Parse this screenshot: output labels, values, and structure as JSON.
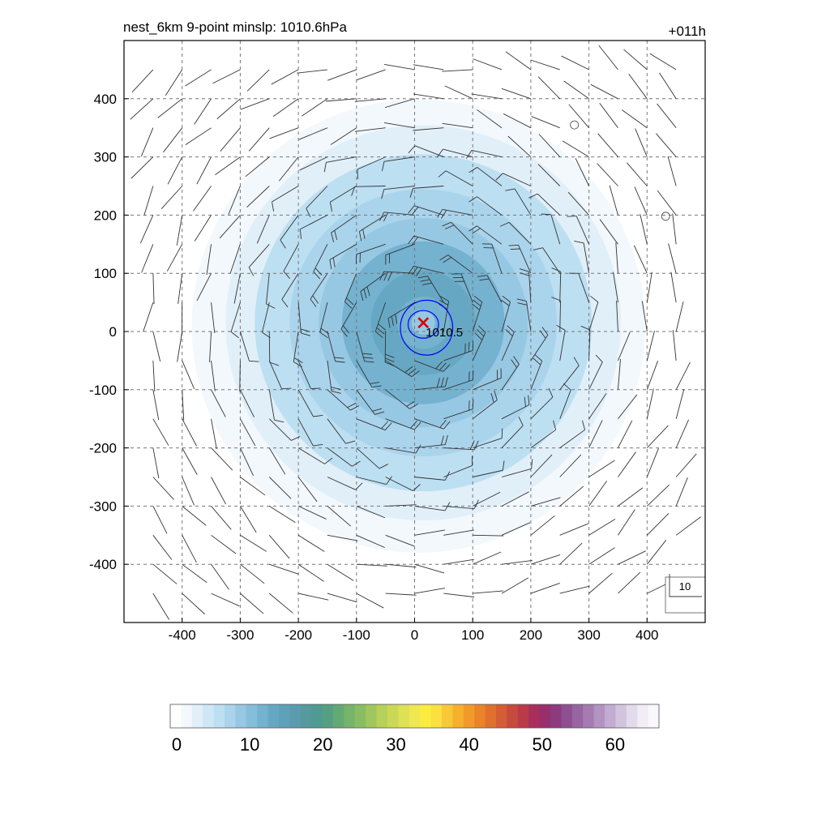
{
  "chart_data": {
    "type": "heatmap",
    "title": "nest_6km  9-point minslp: 1010.6hPa",
    "time_label": "+011h",
    "xlim": [
      -500,
      500
    ],
    "ylim": [
      -500,
      500
    ],
    "x_ticks": [
      -400,
      -300,
      -200,
      -100,
      0,
      100,
      200,
      300,
      400
    ],
    "y_ticks": [
      -400,
      -300,
      -200,
      -100,
      0,
      100,
      200,
      300,
      400
    ],
    "x_tick_labels": [
      "-400",
      "-300",
      "-200",
      "-100",
      "0",
      "100",
      "200",
      "300",
      "400"
    ],
    "y_tick_labels": [
      "-400",
      "-300",
      "-200",
      "-100",
      "0",
      "100",
      "200",
      "300",
      "400"
    ],
    "grid": true,
    "center": {
      "x": 15,
      "y": 15,
      "marker": "x",
      "marker_color": "#dd0000"
    },
    "center_label": "1010.5",
    "wind_speed_field": {
      "description_units": "m/s",
      "rings": [
        {
          "radius": 390,
          "value": 2
        },
        {
          "radius": 340,
          "value": 4
        },
        {
          "radius": 290,
          "value": 6
        },
        {
          "radius": 230,
          "value": 8
        },
        {
          "radius": 180,
          "value": 10
        },
        {
          "radius": 140,
          "value": 12
        },
        {
          "radius": 90,
          "value": 14
        },
        {
          "radius": 45,
          "value": 13
        },
        {
          "radius": 20,
          "value": 9
        }
      ]
    },
    "pressure_contours": [
      {
        "radius": 45,
        "color": "#0000ff"
      },
      {
        "radius": 25,
        "color": "#0000ff"
      }
    ],
    "calm_markers": [
      {
        "x": 275,
        "y": 355
      },
      {
        "x": 432,
        "y": 198
      }
    ],
    "reference_barb_label": "10",
    "colorbar": {
      "min": 0,
      "max": 66,
      "tick_values": [
        0,
        10,
        20,
        30,
        40,
        50,
        60
      ],
      "tick_labels": [
        "0",
        "10",
        "20",
        "30",
        "40",
        "50",
        "60"
      ],
      "colors": [
        "#ffffff",
        "#f2f8fc",
        "#e1eff9",
        "#cfe7f5",
        "#bddff2",
        "#aad4ec",
        "#97c8e3",
        "#86bdda",
        "#74b2d0",
        "#66a8c4",
        "#5ea1b9",
        "#5a9cae",
        "#56999f",
        "#4f9a92",
        "#55a083",
        "#63a974",
        "#76b36b",
        "#8abd63",
        "#a0c75d",
        "#b6d059",
        "#cbd856",
        "#dde155",
        "#eee852",
        "#fbec3f",
        "#fae040",
        "#f8c836",
        "#f6b02e",
        "#f19a2a",
        "#ea842a",
        "#e0702e",
        "#d45c36",
        "#c8493e",
        "#bb3a4a",
        "#a82f5c",
        "#982f6c",
        "#8d3a7e",
        "#8e4f91",
        "#9864a1",
        "#a57bb2",
        "#b393c2",
        "#c2acd1",
        "#d2c4df",
        "#e3daeb",
        "#f2ecf6",
        "#faf7fc"
      ]
    }
  }
}
